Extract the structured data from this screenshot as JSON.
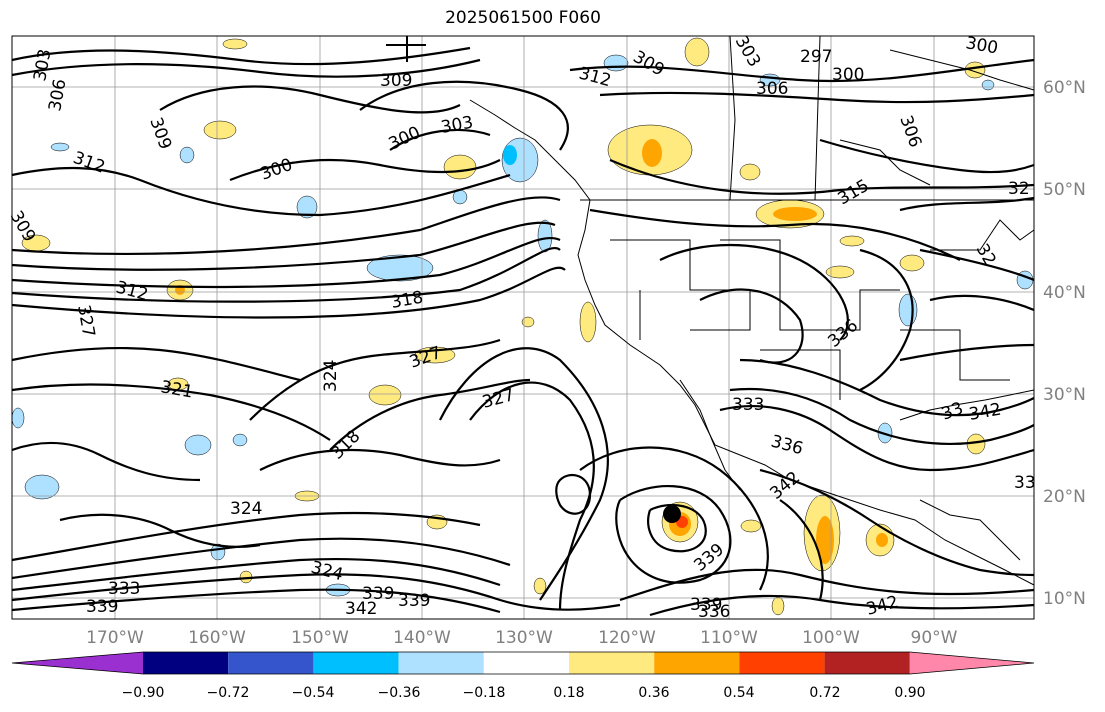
{
  "title": "2025061500 F060",
  "lon_ticks": [
    "170°W",
    "160°W",
    "150°W",
    "140°W",
    "130°W",
    "120°W",
    "110°W",
    "100°W",
    "90°W"
  ],
  "lat_ticks": [
    "60°N",
    "50°N",
    "40°N",
    "30°N",
    "20°N",
    "10°N"
  ],
  "colorbar": {
    "colors": [
      "#9b30d0",
      "#000080",
      "#3455cc",
      "#00bfff",
      "#aee0ff",
      "#ffffff",
      "#ffea80",
      "#ffa500",
      "#ff4000",
      "#b22222",
      "#ff88aa"
    ],
    "labels": [
      "−0.90",
      "−0.72",
      "−0.54",
      "−0.36",
      "−0.18",
      "0.18",
      "0.36",
      "0.54",
      "0.72",
      "0.90"
    ]
  },
  "contour_labels": [
    {
      "text": "303"
    },
    {
      "text": "306"
    },
    {
      "text": "309"
    },
    {
      "text": "312"
    },
    {
      "text": "309"
    },
    {
      "text": "300"
    },
    {
      "text": "303"
    },
    {
      "text": "300"
    },
    {
      "text": "309"
    },
    {
      "text": "312"
    },
    {
      "text": "309"
    },
    {
      "text": "303"
    },
    {
      "text": "297"
    },
    {
      "text": "300"
    },
    {
      "text": "306"
    },
    {
      "text": "300"
    },
    {
      "text": "306"
    },
    {
      "text": "315"
    },
    {
      "text": "32"
    },
    {
      "text": "32"
    },
    {
      "text": "312"
    },
    {
      "text": "318"
    },
    {
      "text": "327"
    },
    {
      "text": "327"
    },
    {
      "text": "324"
    },
    {
      "text": "321"
    },
    {
      "text": "327"
    },
    {
      "text": "336"
    },
    {
      "text": "318"
    },
    {
      "text": "333"
    },
    {
      "text": "336"
    },
    {
      "text": "342"
    },
    {
      "text": "33"
    },
    {
      "text": "324"
    },
    {
      "text": "324"
    },
    {
      "text": "333"
    },
    {
      "text": "339"
    },
    {
      "text": "339"
    },
    {
      "text": "339"
    },
    {
      "text": "342"
    },
    {
      "text": "339"
    },
    {
      "text": "339"
    },
    {
      "text": "336"
    },
    {
      "text": "342"
    },
    {
      "text": "33"
    },
    {
      "text": "342"
    }
  ],
  "map_colors": {
    "contour": "#000000",
    "gridline": "#9a9a9a",
    "boundary": "#000000"
  }
}
